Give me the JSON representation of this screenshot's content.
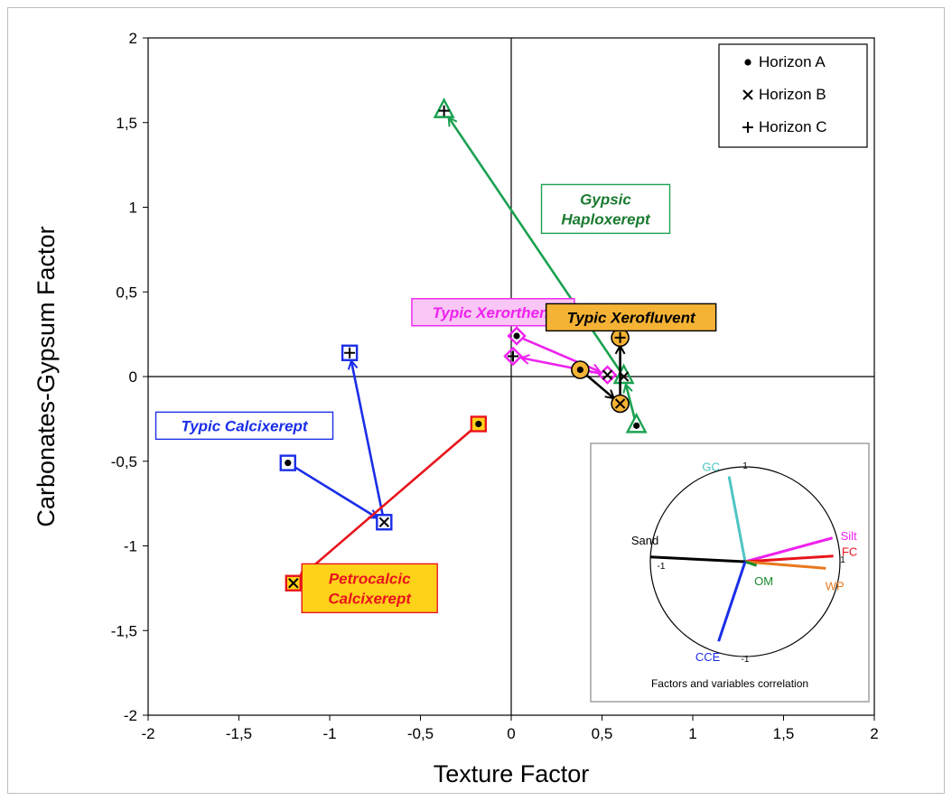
{
  "chart_data": {
    "type": "scatter",
    "xlabel": "Texture Factor",
    "ylabel": "Carbonates-Gypsum Factor",
    "xlim": [
      -2,
      2
    ],
    "ylim": [
      -2,
      2
    ],
    "x_ticks": [
      "-2",
      "-1,5",
      "-1",
      "-0,5",
      "0",
      "0,5",
      "1",
      "1,5",
      "2"
    ],
    "y_ticks": [
      "2",
      "1,5",
      "1",
      "0,5",
      "0",
      "-0,5",
      "-1",
      "-1,5",
      "-2"
    ],
    "grid": false,
    "legend_position": "top-right",
    "legend": [
      {
        "marker": "dot",
        "label": "Horizon A"
      },
      {
        "marker": "x",
        "label": "Horizon B"
      },
      {
        "marker": "plus",
        "label": "Horizon C"
      }
    ],
    "series": [
      {
        "name": "Gypsic Haploxerept",
        "label_lines": [
          "Gypsic",
          "Haploxerept"
        ],
        "color": "#1aa150",
        "label_fill": "#ffffff",
        "label_text_color": "#1a7a30",
        "shape": "triangle",
        "points": [
          {
            "horizon": "A",
            "x": 0.69,
            "y": -0.29
          },
          {
            "horizon": "B",
            "x": 0.62,
            "y": 0.0
          },
          {
            "horizon": "C",
            "x": -0.37,
            "y": 1.57
          }
        ]
      },
      {
        "name": "Typic Xerorthent",
        "label_lines": [
          "Typic Xerorthent"
        ],
        "color": "#ee22ee",
        "label_fill": "#f9c6f5",
        "label_text_color": "#ee22ee",
        "shape": "diamond",
        "points": [
          {
            "horizon": "A",
            "x": 0.03,
            "y": 0.24
          },
          {
            "horizon": "B",
            "x": 0.53,
            "y": 0.01
          },
          {
            "horizon": "C",
            "x": 0.01,
            "y": 0.12
          }
        ]
      },
      {
        "name": "Typic Xerofluvent",
        "label_lines": [
          "Typic Xerofluvent"
        ],
        "color": "#000000",
        "label_fill": "#f5b335",
        "label_text_color": "#000000",
        "shape": "circle",
        "points": [
          {
            "horizon": "A",
            "x": 0.38,
            "y": 0.04
          },
          {
            "horizon": "B",
            "x": 0.6,
            "y": -0.16
          },
          {
            "horizon": "C",
            "x": 0.6,
            "y": 0.23
          }
        ]
      },
      {
        "name": "Typic Calcixerept",
        "label_lines": [
          "Typic Calcixerept"
        ],
        "color": "#1a2ee8",
        "label_fill": "#ffffff",
        "label_text_color": "#1a2ee8",
        "shape": "square",
        "points": [
          {
            "horizon": "A",
            "x": -1.23,
            "y": -0.51
          },
          {
            "horizon": "B",
            "x": -0.7,
            "y": -0.86
          },
          {
            "horizon": "C",
            "x": -0.89,
            "y": 0.14
          }
        ]
      },
      {
        "name": "Petrocalcic Calcixerept",
        "label_lines": [
          "Petrocalcic",
          "Calcixerept"
        ],
        "color": "#e8141c",
        "label_fill": "#ffd21a",
        "label_text_color": "#e8141c",
        "shape": "square",
        "points": [
          {
            "horizon": "A",
            "x": -0.18,
            "y": -0.28
          },
          {
            "horizon": "B",
            "x": -1.2,
            "y": -1.22
          }
        ]
      }
    ],
    "inset": {
      "caption": "Factors and variables correlation",
      "ticks": {
        "top": "1",
        "left": "-1",
        "right": "1",
        "bottom": "-1"
      },
      "vectors": [
        {
          "name": "GC",
          "x": -0.17,
          "y": 0.9,
          "color": "#4ec4c4"
        },
        {
          "name": "Silt",
          "x": 0.92,
          "y": 0.25,
          "color": "#ee22ee"
        },
        {
          "name": "FC",
          "x": 0.93,
          "y": 0.06,
          "color": "#e8141c"
        },
        {
          "name": "WP",
          "x": 0.85,
          "y": -0.07,
          "color": "#e8781e"
        },
        {
          "name": "Sand",
          "x": -1.0,
          "y": 0.05,
          "color": "#000000"
        },
        {
          "name": "OM",
          "x": 0.12,
          "y": -0.04,
          "color": "#1a8a2a"
        },
        {
          "name": "CCE",
          "x": -0.28,
          "y": -0.84,
          "color": "#1a2ee8"
        }
      ]
    }
  }
}
